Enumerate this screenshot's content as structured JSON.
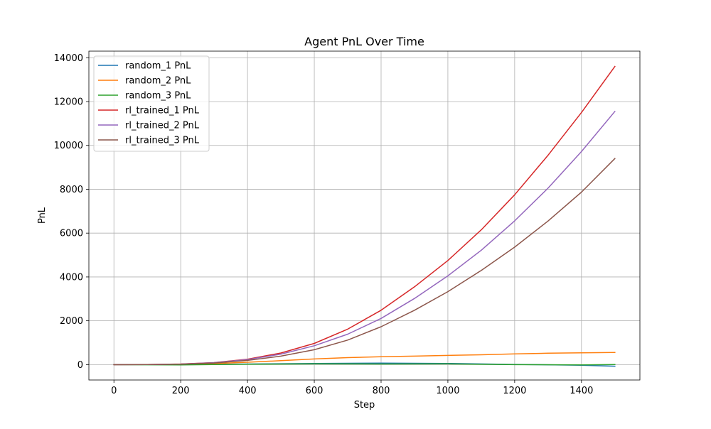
{
  "chart_data": {
    "type": "line",
    "title": "Agent PnL Over Time",
    "xlabel": "Step",
    "ylabel": "PnL",
    "xlim": [
      -75,
      1575
    ],
    "ylim": [
      -700,
      14300
    ],
    "xticks": [
      0,
      200,
      400,
      600,
      800,
      1000,
      1200,
      1400
    ],
    "yticks": [
      0,
      2000,
      4000,
      6000,
      8000,
      10000,
      12000,
      14000
    ],
    "grid": true,
    "legend_position": "upper-left",
    "series": [
      {
        "name": "random_1 PnL",
        "color": "#1f77b4",
        "points": [
          [
            0,
            0
          ],
          [
            200,
            5
          ],
          [
            400,
            30
          ],
          [
            600,
            55
          ],
          [
            800,
            70
          ],
          [
            1000,
            55
          ],
          [
            1200,
            10
          ],
          [
            1400,
            -25
          ],
          [
            1500,
            -70
          ]
        ]
      },
      {
        "name": "random_2 PnL",
        "color": "#ff7f0e",
        "points": [
          [
            0,
            0
          ],
          [
            200,
            10
          ],
          [
            300,
            50
          ],
          [
            400,
            110
          ],
          [
            500,
            180
          ],
          [
            600,
            260
          ],
          [
            700,
            320
          ],
          [
            800,
            360
          ],
          [
            900,
            390
          ],
          [
            1000,
            420
          ],
          [
            1100,
            450
          ],
          [
            1200,
            490
          ],
          [
            1300,
            520
          ],
          [
            1400,
            540
          ],
          [
            1500,
            555
          ]
        ]
      },
      {
        "name": "random_3 PnL",
        "color": "#2ca02c",
        "points": [
          [
            0,
            0
          ],
          [
            200,
            -10
          ],
          [
            400,
            20
          ],
          [
            600,
            40
          ],
          [
            800,
            30
          ],
          [
            1000,
            35
          ],
          [
            1200,
            0
          ],
          [
            1400,
            -10
          ],
          [
            1500,
            5
          ]
        ]
      },
      {
        "name": "rl_trained_1 PnL",
        "color": "#d62728",
        "points": [
          [
            0,
            0
          ],
          [
            100,
            5
          ],
          [
            200,
            30
          ],
          [
            300,
            95
          ],
          [
            400,
            250
          ],
          [
            500,
            530
          ],
          [
            600,
            970
          ],
          [
            700,
            1620
          ],
          [
            800,
            2480
          ],
          [
            900,
            3550
          ],
          [
            1000,
            4750
          ],
          [
            1100,
            6150
          ],
          [
            1200,
            7750
          ],
          [
            1300,
            9550
          ],
          [
            1400,
            11500
          ],
          [
            1500,
            13600
          ]
        ]
      },
      {
        "name": "rl_trained_2 PnL",
        "color": "#9467bd",
        "points": [
          [
            0,
            0
          ],
          [
            100,
            5
          ],
          [
            200,
            25
          ],
          [
            300,
            90
          ],
          [
            400,
            230
          ],
          [
            500,
            480
          ],
          [
            600,
            860
          ],
          [
            700,
            1390
          ],
          [
            800,
            2110
          ],
          [
            900,
            3020
          ],
          [
            1000,
            4050
          ],
          [
            1100,
            5220
          ],
          [
            1200,
            6560
          ],
          [
            1300,
            8050
          ],
          [
            1400,
            9720
          ],
          [
            1500,
            11550
          ]
        ]
      },
      {
        "name": "rl_trained_3 PnL",
        "color": "#8c564b",
        "points": [
          [
            0,
            0
          ],
          [
            100,
            5
          ],
          [
            200,
            20
          ],
          [
            300,
            75
          ],
          [
            400,
            195
          ],
          [
            500,
            390
          ],
          [
            600,
            680
          ],
          [
            700,
            1120
          ],
          [
            800,
            1730
          ],
          [
            900,
            2480
          ],
          [
            1000,
            3330
          ],
          [
            1100,
            4300
          ],
          [
            1200,
            5360
          ],
          [
            1300,
            6550
          ],
          [
            1400,
            7870
          ],
          [
            1500,
            9400
          ]
        ]
      }
    ]
  }
}
